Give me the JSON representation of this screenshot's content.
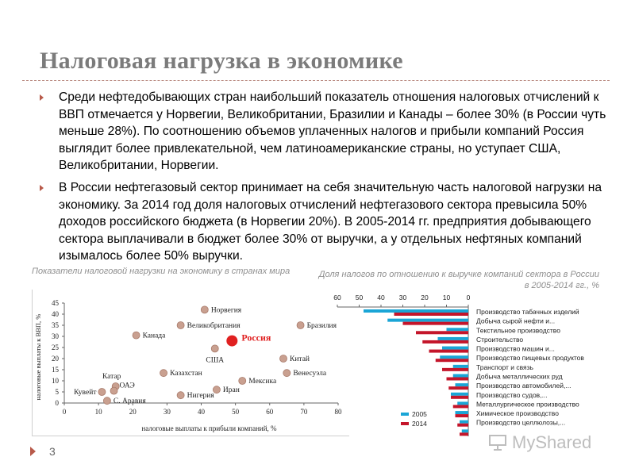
{
  "slide": {
    "title": "Налоговая нагрузка в экономике",
    "page_number": "3",
    "accent_color": "#b85a4a",
    "title_color": "#7b7b7b",
    "watermark": "MyShared"
  },
  "bullets": [
    "Среди нефтедобывающих стран наибольший показатель отношения налоговых отчислений к ВВП отмечается у Норвегии, Великобритании, Бразилии и Канады – более 30% (в России чуть меньше 28%). По соотношению объемов уплаченных налогов и прибыли компаний Россия выглядит более привлекательной, чем латиноамериканские страны, но уступает США, Великобритании, Норвегии.",
    "В России нефтегазовый сектор принимает на себя значительную часть налоговой нагрузки на экономику. За 2014 год доля налоговых отчислений нефтегазового сектора превысила 50% доходов российского бюджета (в Норвегии 20%). В 2005-2014 гг. предприятия добывающего сектора выплачивали в бюджет более 30% от выручки, а у отдельных нефтяных компаний изымалось более 50% выручки."
  ],
  "captions": {
    "left": "Показатели налоговой нагрузки на экономику в странах мира",
    "right": "Доля налогов по отношению к выручке компаний сектора в России в 2005-2014 гг., %"
  },
  "chart_data": [
    {
      "type": "scatter",
      "xlabel": "налоговые выплаты к прибыли компаний, %",
      "ylabel": "налоговые выплаты к ВВП, %",
      "xlim": [
        0,
        80
      ],
      "ylim": [
        0,
        45
      ],
      "xticks": [
        0,
        10,
        20,
        30,
        40,
        50,
        60,
        70,
        80
      ],
      "yticks": [
        0,
        5,
        10,
        15,
        20,
        25,
        30,
        35,
        40,
        45
      ],
      "grid": false,
      "point_color": "#c9a090",
      "highlight_color": "#e02020",
      "points": [
        {
          "name": "Норвегия",
          "x": 41,
          "y": 42,
          "label_pos": "right"
        },
        {
          "name": "Великобритания",
          "x": 34,
          "y": 35,
          "label_pos": "right"
        },
        {
          "name": "Бразилия",
          "x": 69,
          "y": 35,
          "label_pos": "right"
        },
        {
          "name": "Канада",
          "x": 21,
          "y": 30.5,
          "label_pos": "right"
        },
        {
          "name": "Россия",
          "x": 49,
          "y": 28,
          "label_pos": "right",
          "highlight": true
        },
        {
          "name": "США",
          "x": 44,
          "y": 24.5,
          "label_pos": "below"
        },
        {
          "name": "Китай",
          "x": 64,
          "y": 20,
          "label_pos": "right"
        },
        {
          "name": "Казахстан",
          "x": 29,
          "y": 13.5,
          "label_pos": "right"
        },
        {
          "name": "Венесуэла",
          "x": 65,
          "y": 13.5,
          "label_pos": "right"
        },
        {
          "name": "Мексика",
          "x": 52,
          "y": 10,
          "label_pos": "right"
        },
        {
          "name": "Катар",
          "x": 15,
          "y": 7.5,
          "label_pos": "above-left"
        },
        {
          "name": "ОАЭ",
          "x": 14.5,
          "y": 5.5,
          "label_pos": "right-up"
        },
        {
          "name": "Кувейт",
          "x": 11,
          "y": 5,
          "label_pos": "left"
        },
        {
          "name": "Иран",
          "x": 44.5,
          "y": 6,
          "label_pos": "right"
        },
        {
          "name": "Нигерия",
          "x": 34,
          "y": 3.5,
          "label_pos": "right"
        },
        {
          "name": "С. Аравия",
          "x": 12.5,
          "y": 1,
          "label_pos": "right"
        }
      ]
    },
    {
      "type": "bar",
      "orientation": "horizontal",
      "direction": "reversed",
      "xlim": [
        0,
        60
      ],
      "xticks": [
        60,
        50,
        40,
        30,
        20,
        10,
        0
      ],
      "legend_position": "bottom-left",
      "series": [
        {
          "name": "2005",
          "color": "#1aa5d6",
          "values": [
            48,
            37,
            10,
            14,
            12,
            13,
            7,
            7,
            6,
            8,
            5,
            6,
            4,
            3
          ]
        },
        {
          "name": "2014",
          "color": "#c4152a",
          "values": [
            34,
            30,
            24,
            21,
            18,
            15,
            12,
            10,
            9,
            8,
            7,
            6,
            5,
            4
          ]
        }
      ],
      "categories": [
        "Производство табачных изделий",
        "Добыча сырой нефти и...",
        "Текстильное производство",
        "Строительство",
        "Производство машин и...",
        "Производство пищевых продуктов",
        "Транспорт и связь",
        "Добыча металлических руд",
        "Производство автомобилей,...",
        "Производство судов,...",
        "Металлургическое производство",
        "Химическое производство",
        "Производство целлюлозы,...",
        ""
      ]
    }
  ]
}
